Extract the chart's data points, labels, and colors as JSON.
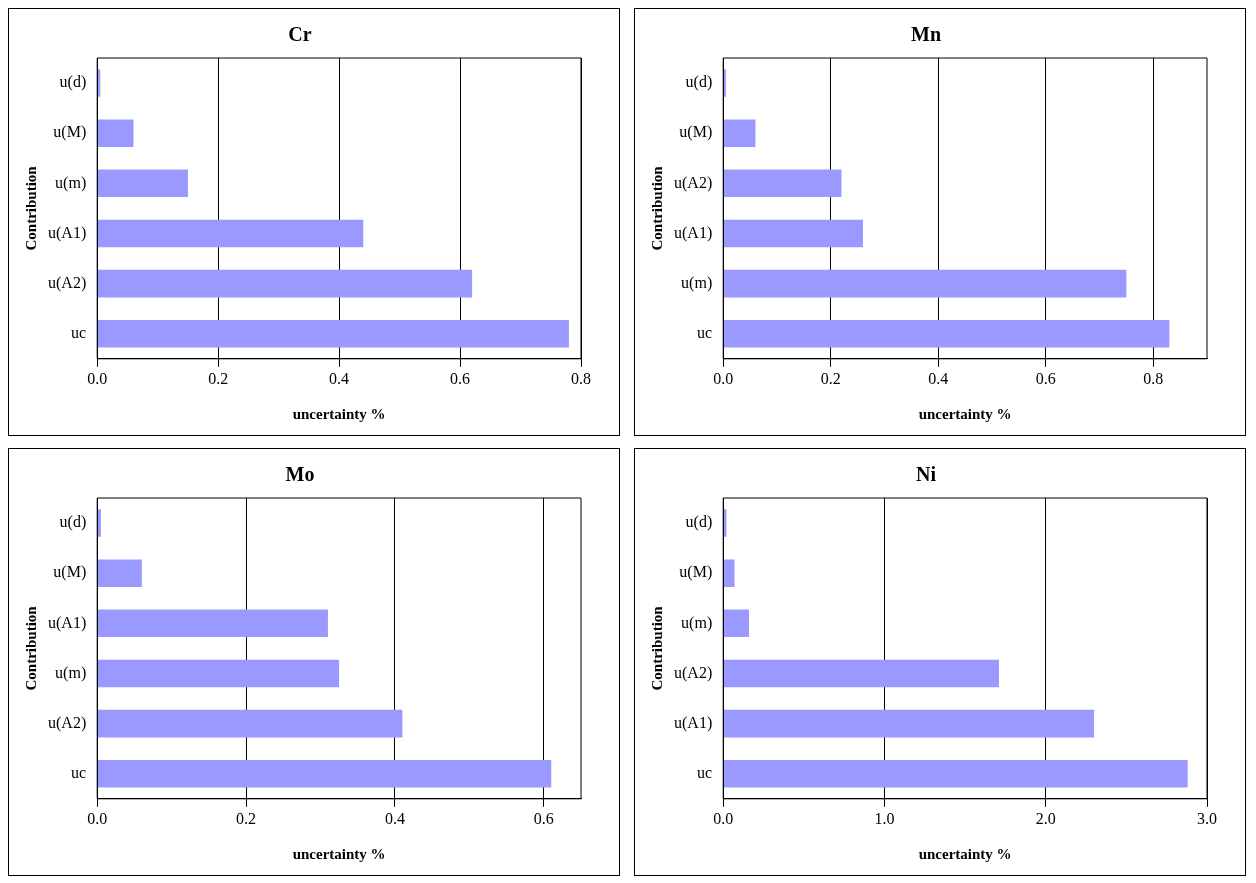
{
  "chart_data": [
    {
      "type": "bar",
      "orientation": "horizontal",
      "title": "Cr",
      "xlabel": "uncertainty %",
      "ylabel": "Contribution",
      "categories": [
        "u(d)",
        "u(M)",
        "u(m)",
        "u(A1)",
        "u(A2)",
        "uc"
      ],
      "values": [
        0.005,
        0.06,
        0.15,
        0.44,
        0.62,
        0.78
      ],
      "color": "#9999ff",
      "xlim": [
        0,
        0.8
      ],
      "xticks": [
        {
          "value": 0,
          "label": "0.0"
        },
        0.2,
        0.4,
        0.6,
        0.8
      ],
      "grid": "x",
      "legend": false
    },
    {
      "type": "bar",
      "orientation": "horizontal",
      "title": "Mn",
      "xlabel": "uncertainty %",
      "ylabel": "Contribution",
      "categories": [
        "u(d)",
        "u(M)",
        "u(A2)",
        "u(A1)",
        "u(m)",
        "uc"
      ],
      "values": [
        0.005,
        0.06,
        0.22,
        0.26,
        0.75,
        0.83
      ],
      "color": "#9999ff",
      "xlim": [
        0,
        0.9
      ],
      "xticks": [
        {
          "value": 0,
          "label": "0.0"
        },
        0.2,
        0.4,
        0.6,
        0.8
      ],
      "grid": "x",
      "legend": false
    },
    {
      "type": "bar",
      "orientation": "horizontal",
      "title": "Mo",
      "xlabel": "uncertainty %",
      "ylabel": "Contribution",
      "categories": [
        "u(d)",
        "u(M)",
        "u(A1)",
        "u(m)",
        "u(A2)",
        "uc"
      ],
      "values": [
        0.005,
        0.06,
        0.31,
        0.325,
        0.41,
        0.61
      ],
      "color": "#9999ff",
      "xlim": [
        0,
        0.65
      ],
      "xticks": [
        {
          "value": 0,
          "label": "0.0"
        },
        0.2,
        0.4,
        0.6
      ],
      "grid": "x",
      "legend": false
    },
    {
      "type": "bar",
      "orientation": "horizontal",
      "title": "Ni",
      "xlabel": "uncertainty %",
      "ylabel": "Contribution",
      "categories": [
        "u(d)",
        "u(M)",
        "u(m)",
        "u(A2)",
        "u(A1)",
        "uc"
      ],
      "values": [
        0.02,
        0.07,
        0.16,
        1.71,
        2.3,
        2.88
      ],
      "color": "#9999ff",
      "xlim": [
        0,
        3.0
      ],
      "xticks": [
        {
          "value": 0,
          "label": "0.0"
        },
        {
          "value": 1,
          "label": "1.0"
        },
        {
          "value": 2,
          "label": "2.0"
        },
        {
          "value": 3,
          "label": "3.0"
        }
      ],
      "grid": "x",
      "legend": false
    }
  ]
}
